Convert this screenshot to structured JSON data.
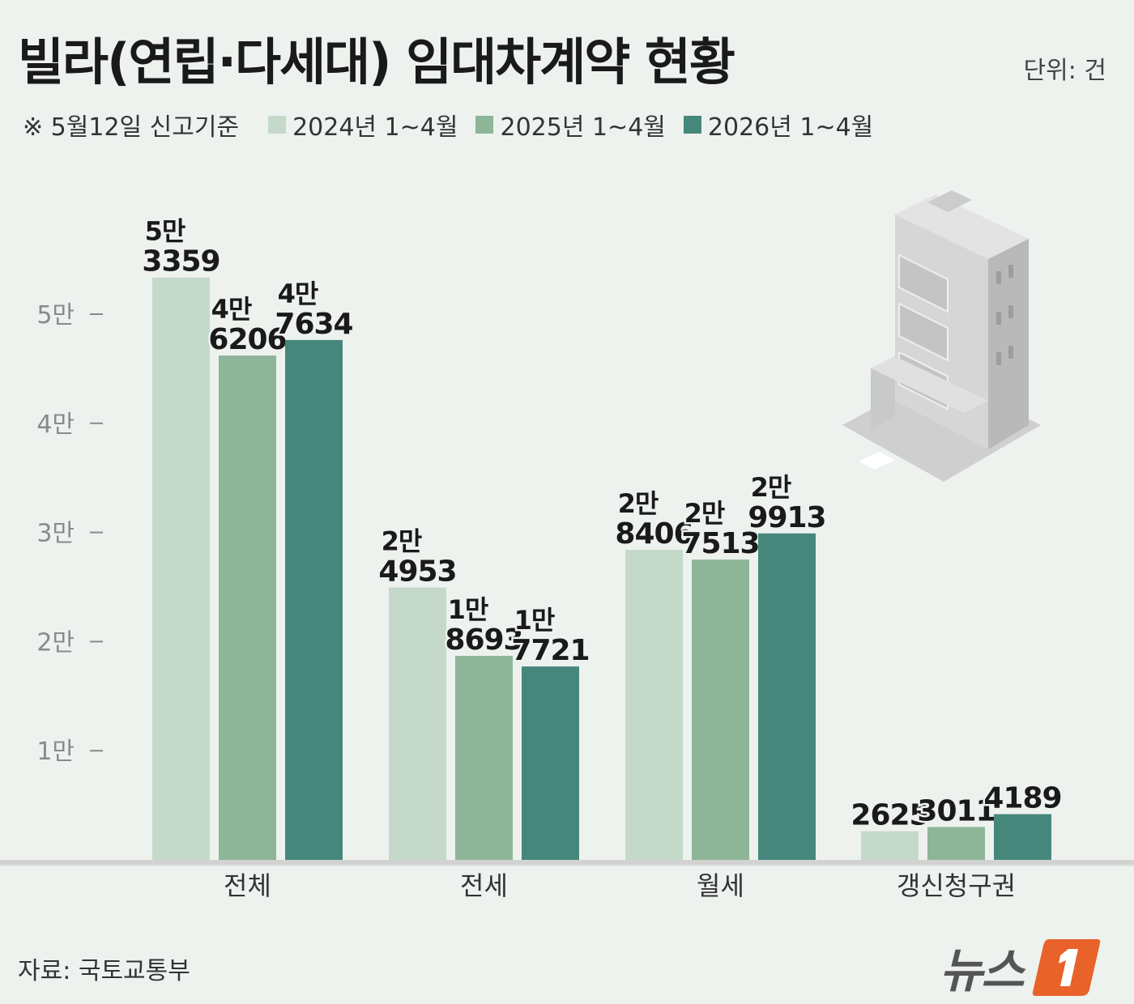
{
  "title": "빌라(연립·다세대) 임대차계약 현황",
  "unit": "단위: 건",
  "note": "※ 5월12일 신고기준",
  "source": "자료: 국토교통부",
  "logo_text": "뉴스",
  "colors": {
    "s2024": "#c5d9cb",
    "s2025": "#8db597",
    "s2026": "#46877c",
    "logo_orange": "#e8622a"
  },
  "chart_data": {
    "type": "bar",
    "categories": [
      "전체",
      "전세",
      "월세",
      "갱신청구권"
    ],
    "series": [
      {
        "name": "2024년 1~4월",
        "values": [
          53359,
          24953,
          28406,
          2625
        ]
      },
      {
        "name": "2025년 1~4월",
        "values": [
          46206,
          18693,
          27513,
          3011
        ]
      },
      {
        "name": "2026년 1~4월",
        "values": [
          47634,
          17721,
          29913,
          4189
        ]
      }
    ],
    "data_labels": [
      [
        [
          "5만",
          "3359"
        ],
        [
          "2만",
          "4953"
        ],
        [
          "2만",
          "8406"
        ],
        [
          "",
          "2625"
        ]
      ],
      [
        [
          "4만",
          "6206"
        ],
        [
          "1만",
          "8693"
        ],
        [
          "2만",
          "7513"
        ],
        [
          "",
          "3011"
        ]
      ],
      [
        [
          "4만",
          "7634"
        ],
        [
          "1만",
          "7721"
        ],
        [
          "2만",
          "9913"
        ],
        [
          "",
          "4189"
        ]
      ]
    ],
    "yticks": [
      10000,
      20000,
      30000,
      40000,
      50000
    ],
    "ytick_labels": [
      "1만",
      "2만",
      "3만",
      "4만",
      "5만"
    ],
    "ylim": [
      0,
      60000
    ],
    "grid": false
  }
}
